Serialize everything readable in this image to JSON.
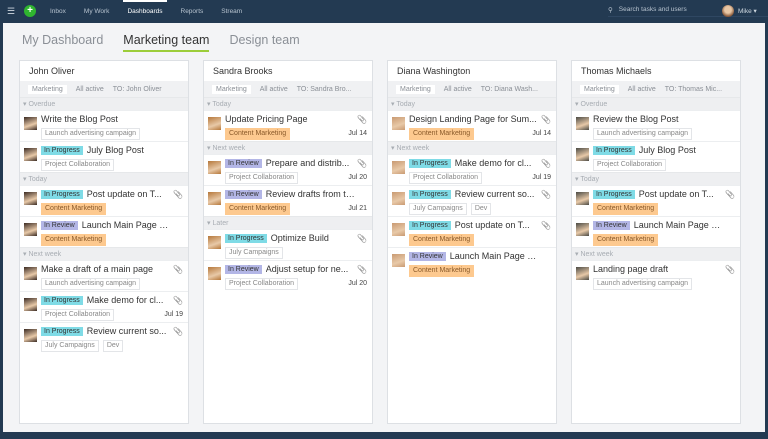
{
  "nav": {
    "menu_icon": "hamburger-icon",
    "add_icon": "plus-icon",
    "links": [
      "Inbox",
      "My Work",
      "Dashboards",
      "Reports",
      "Stream"
    ],
    "active": "Dashboards",
    "search_placeholder": "Search tasks and users",
    "user": "Mike ▾"
  },
  "tabs": [
    "My Dashboard",
    "Marketing team",
    "Design team"
  ],
  "active_tab": "Marketing team",
  "colors": {
    "nav": "#233a52",
    "in_progress": "#7fdbe6",
    "in_review": "#b3b6e6",
    "content_marketing": "#fdc98f",
    "tab_underline": "#9ccd3a"
  },
  "columns": [
    {
      "name": "John Oliver",
      "avatar": "#3a2a22",
      "filters": [
        "Marketing",
        "All active",
        "TO: John Oliver"
      ],
      "sections": [
        {
          "label": "▾ Overdue",
          "tasks": [
            {
              "status": "",
              "title": "Write the Blog Post",
              "tags": [
                "Launch advertising campaign"
              ],
              "date": "",
              "attach": false
            },
            {
              "status": "In Progress",
              "title": "July Blog Post",
              "tags": [
                "Project Collaboration"
              ],
              "date": "",
              "attach": false
            }
          ]
        },
        {
          "label": "▾ Today",
          "tasks": [
            {
              "status": "In Progress",
              "title": "Post update on T...",
              "tags": [
                "Content Marketing"
              ],
              "date": "",
              "attach": true
            },
            {
              "status": "In Review",
              "title": "Launch Main Page Ex...",
              "tags": [
                "Content Marketing"
              ],
              "date": "",
              "attach": false
            }
          ]
        },
        {
          "label": "▾ Next week",
          "tasks": [
            {
              "status": "",
              "title": "Make a draft of a main page",
              "tags": [
                "Launch advertising campaign"
              ],
              "date": "",
              "attach": true
            },
            {
              "status": "In Progress",
              "title": "Make demo for cl...",
              "tags": [
                "Project Collaboration"
              ],
              "date": "Jul 19",
              "attach": true
            },
            {
              "status": "In Progress",
              "title": "Review current so...",
              "tags": [
                "July Campaigns",
                "Dev"
              ],
              "date": "",
              "attach": true
            }
          ]
        }
      ]
    },
    {
      "name": "Sandra Brooks",
      "avatar": "#b5773a",
      "filters": [
        "Marketing",
        "All active",
        "TO: Sandra Bro..."
      ],
      "sections": [
        {
          "label": "▾ Today",
          "tasks": [
            {
              "status": "",
              "title": "Update Pricing Page",
              "tags": [
                "Content Marketing"
              ],
              "date": "Jul 14",
              "attach": true
            }
          ]
        },
        {
          "label": "▾ Next week",
          "tasks": [
            {
              "status": "In Review",
              "title": "Prepare and distrib...",
              "tags": [
                "Project Collaboration"
              ],
              "date": "Jul 20",
              "attach": true
            },
            {
              "status": "In Review",
              "title": "Review drafts from th...",
              "tags": [
                "Content Marketing"
              ],
              "date": "Jul 21",
              "attach": false
            }
          ]
        },
        {
          "label": "▾ Later",
          "tasks": [
            {
              "status": "In Progress",
              "title": "Optimize Build",
              "tags": [
                "July Campaigns"
              ],
              "date": "",
              "attach": true
            },
            {
              "status": "In Review",
              "title": "Adjust setup for ne...",
              "tags": [
                "Project Collaboration"
              ],
              "date": "Jul 20",
              "attach": true
            }
          ]
        }
      ]
    },
    {
      "name": "Diana Washington",
      "avatar": "#c99a72",
      "filters": [
        "Marketing",
        "All active",
        "TO: Diana Wash..."
      ],
      "sections": [
        {
          "label": "▾ Today",
          "tasks": [
            {
              "status": "",
              "title": "Design Landing Page for Sum...",
              "tags": [
                "Content Marketing"
              ],
              "date": "Jul 14",
              "attach": true
            }
          ]
        },
        {
          "label": "▾ Next week",
          "tasks": [
            {
              "status": "In Progress",
              "title": "Make demo for cl...",
              "tags": [
                "Project Collaboration"
              ],
              "date": "Jul 19",
              "attach": true
            },
            {
              "status": "In Progress",
              "title": "Review current so...",
              "tags": [
                "July Campaigns",
                "Dev"
              ],
              "date": "",
              "attach": true
            },
            {
              "status": "In Progress",
              "title": "Post update on T...",
              "tags": [
                "Content Marketing"
              ],
              "date": "",
              "attach": true
            },
            {
              "status": "In Review",
              "title": "Launch Main Page Ex...",
              "tags": [
                "Content Marketing"
              ],
              "date": "",
              "attach": false
            }
          ]
        }
      ]
    },
    {
      "name": "Thomas Michaels",
      "avatar": "#4a4a44",
      "filters": [
        "Marketing",
        "All active",
        "TO: Thomas Mic..."
      ],
      "sections": [
        {
          "label": "▾ Overdue",
          "tasks": [
            {
              "status": "",
              "title": "Review the Blog Post",
              "tags": [
                "Launch advertising campaign"
              ],
              "date": "",
              "attach": false
            },
            {
              "status": "In Progress",
              "title": "July Blog Post",
              "tags": [
                "Project Collaboration"
              ],
              "date": "",
              "attach": false
            }
          ]
        },
        {
          "label": "▾ Today",
          "tasks": [
            {
              "status": "In Progress",
              "title": "Post update on T...",
              "tags": [
                "Content Marketing"
              ],
              "date": "",
              "attach": true
            },
            {
              "status": "In Review",
              "title": "Launch Main Page Ex...",
              "tags": [
                "Content Marketing"
              ],
              "date": "",
              "attach": false
            }
          ]
        },
        {
          "label": "▾ Next week",
          "tasks": [
            {
              "status": "",
              "title": "Landing page draft",
              "tags": [
                "Launch advertising campaign"
              ],
              "date": "",
              "attach": true
            }
          ]
        }
      ]
    }
  ]
}
